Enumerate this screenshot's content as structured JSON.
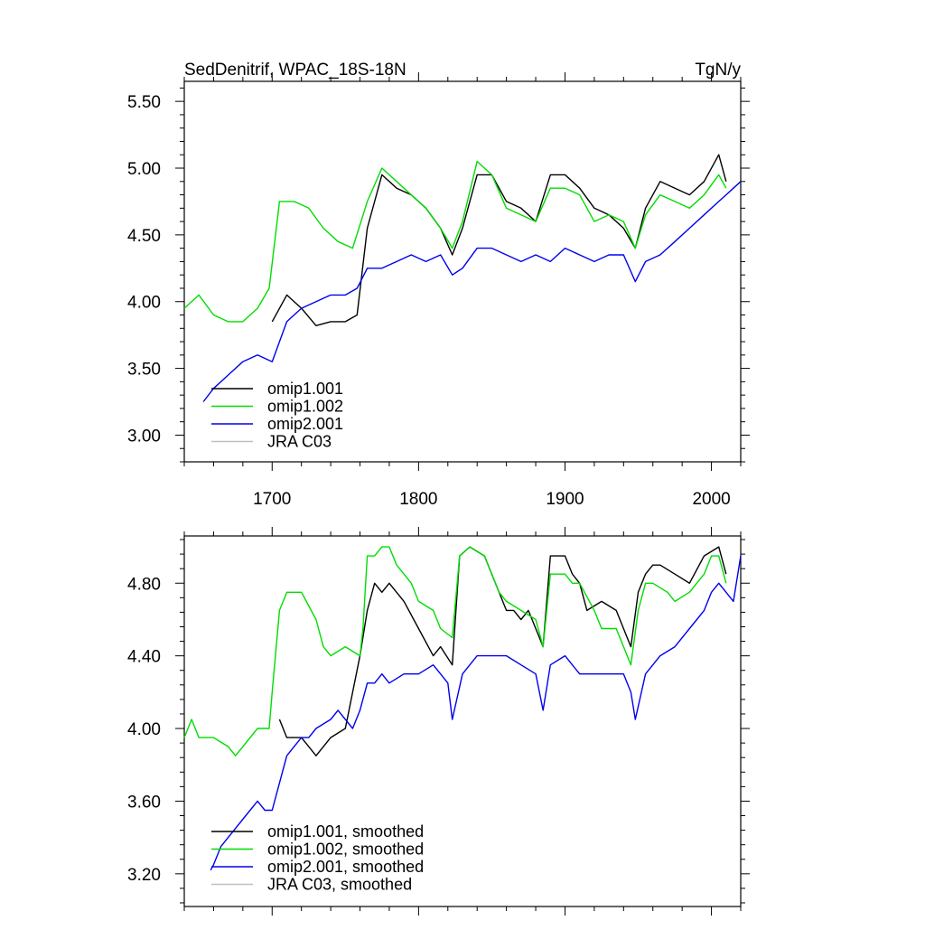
{
  "chart_data": [
    {
      "type": "line",
      "title": "SedDenitrif, WPAC_18S-18N",
      "units": "TgN/y",
      "xlim": [
        1640,
        2020
      ],
      "ylim": [
        2.8,
        5.65
      ],
      "xticks": [
        1700,
        1800,
        1900,
        2000
      ],
      "yticks": [
        "3.00",
        "3.50",
        "4.00",
        "4.50",
        "5.00",
        "5.50"
      ],
      "grid": false,
      "legend_position": "bottom-left",
      "series": [
        {
          "name": "omip1.001",
          "color": "#000000",
          "x": [
            1700,
            1710,
            1720,
            1730,
            1740,
            1750,
            1758,
            1765,
            1775,
            1785,
            1795,
            1805,
            1815,
            1823,
            1830,
            1840,
            1850,
            1860,
            1870,
            1880,
            1890,
            1900,
            1910,
            1920,
            1930,
            1940,
            1948,
            1955,
            1965,
            1975,
            1985,
            1995,
            2005,
            2010
          ],
          "y": [
            3.85,
            4.05,
            3.95,
            3.82,
            3.85,
            3.85,
            3.9,
            4.55,
            4.95,
            4.85,
            4.8,
            4.7,
            4.55,
            4.35,
            4.55,
            4.95,
            4.95,
            4.75,
            4.7,
            4.6,
            4.95,
            4.95,
            4.85,
            4.7,
            4.65,
            4.55,
            4.4,
            4.7,
            4.9,
            4.85,
            4.8,
            4.9,
            5.1,
            4.9
          ]
        },
        {
          "name": "omip1.002",
          "color": "#00dd00",
          "x": [
            1640,
            1650,
            1660,
            1670,
            1680,
            1690,
            1698,
            1705,
            1715,
            1725,
            1735,
            1745,
            1755,
            1765,
            1775,
            1785,
            1795,
            1805,
            1815,
            1823,
            1830,
            1840,
            1850,
            1860,
            1870,
            1880,
            1890,
            1900,
            1910,
            1920,
            1930,
            1940,
            1948,
            1955,
            1965,
            1975,
            1985,
            1995,
            2005,
            2010
          ],
          "y": [
            3.95,
            4.05,
            3.9,
            3.85,
            3.85,
            3.95,
            4.1,
            4.75,
            4.75,
            4.7,
            4.55,
            4.45,
            4.4,
            4.75,
            5.0,
            4.9,
            4.8,
            4.7,
            4.55,
            4.4,
            4.6,
            5.05,
            4.95,
            4.7,
            4.65,
            4.6,
            4.85,
            4.85,
            4.8,
            4.6,
            4.65,
            4.6,
            4.4,
            4.65,
            4.8,
            4.75,
            4.7,
            4.8,
            4.95,
            4.85
          ]
        },
        {
          "name": "omip2.001",
          "color": "#0000ee",
          "x": [
            1653,
            1660,
            1670,
            1680,
            1690,
            1700,
            1710,
            1720,
            1730,
            1740,
            1750,
            1758,
            1765,
            1775,
            1785,
            1795,
            1805,
            1815,
            1823,
            1830,
            1840,
            1850,
            1860,
            1870,
            1880,
            1890,
            1900,
            1910,
            1920,
            1930,
            1940,
            1948,
            1955,
            1965,
            1975,
            1985,
            1995,
            2005,
            2010,
            2015,
            2020
          ],
          "y": [
            3.25,
            3.35,
            3.45,
            3.55,
            3.6,
            3.55,
            3.85,
            3.95,
            4.0,
            4.05,
            4.05,
            4.1,
            4.25,
            4.25,
            4.3,
            4.35,
            4.3,
            4.35,
            4.2,
            4.25,
            4.4,
            4.4,
            4.35,
            4.3,
            4.35,
            4.3,
            4.4,
            4.35,
            4.3,
            4.35,
            4.35,
            4.15,
            4.3,
            4.35,
            4.45,
            4.55,
            4.65,
            4.75,
            4.8,
            4.85,
            4.9
          ]
        },
        {
          "name": "JRA C03",
          "color": "#c0c0c0",
          "x": [],
          "y": []
        }
      ]
    },
    {
      "type": "line",
      "title": "",
      "xlim": [
        1640,
        2020
      ],
      "ylim": [
        3.02,
        5.06
      ],
      "xticks": [
        1700,
        1800,
        1900,
        2000
      ],
      "yticks": [
        "3.20",
        "3.60",
        "4.00",
        "4.40",
        "4.80"
      ],
      "grid": false,
      "legend_position": "bottom-left",
      "series": [
        {
          "name": "omip1.001, smoothed",
          "color": "#000000",
          "x": [
            1705,
            1710,
            1720,
            1730,
            1740,
            1750,
            1760,
            1765,
            1770,
            1775,
            1780,
            1790,
            1800,
            1810,
            1815,
            1823,
            1828,
            1835,
            1845,
            1855,
            1860,
            1865,
            1870,
            1875,
            1880,
            1885,
            1890,
            1900,
            1905,
            1910,
            1915,
            1925,
            1935,
            1945,
            1950,
            1955,
            1960,
            1965,
            1975,
            1985,
            1995,
            2005,
            2010
          ],
          "y": [
            4.05,
            3.95,
            3.95,
            3.85,
            3.95,
            4.0,
            4.4,
            4.65,
            4.8,
            4.75,
            4.8,
            4.7,
            4.55,
            4.4,
            4.45,
            4.35,
            4.95,
            5.0,
            4.95,
            4.75,
            4.65,
            4.65,
            4.6,
            4.65,
            4.55,
            4.45,
            4.95,
            4.95,
            4.85,
            4.8,
            4.65,
            4.7,
            4.65,
            4.45,
            4.75,
            4.85,
            4.9,
            4.9,
            4.85,
            4.8,
            4.95,
            5.0,
            4.85
          ]
        },
        {
          "name": "omip1.002, smoothed",
          "color": "#00dd00",
          "x": [
            1640,
            1645,
            1650,
            1660,
            1670,
            1675,
            1690,
            1698,
            1700,
            1705,
            1710,
            1720,
            1730,
            1735,
            1740,
            1750,
            1760,
            1762,
            1765,
            1770,
            1775,
            1780,
            1785,
            1790,
            1795,
            1800,
            1810,
            1815,
            1823,
            1828,
            1835,
            1845,
            1855,
            1860,
            1870,
            1880,
            1885,
            1890,
            1900,
            1905,
            1910,
            1920,
            1925,
            1935,
            1940,
            1945,
            1950,
            1955,
            1960,
            1970,
            1975,
            1985,
            1995,
            2000,
            2005,
            2010
          ],
          "y": [
            3.95,
            4.05,
            3.95,
            3.95,
            3.9,
            3.85,
            4.0,
            4.0,
            4.2,
            4.65,
            4.75,
            4.75,
            4.6,
            4.45,
            4.4,
            4.45,
            4.4,
            4.55,
            4.95,
            4.95,
            5.0,
            5.0,
            4.9,
            4.85,
            4.8,
            4.7,
            4.65,
            4.55,
            4.5,
            4.95,
            5.0,
            4.95,
            4.75,
            4.7,
            4.65,
            4.6,
            4.45,
            4.85,
            4.85,
            4.8,
            4.8,
            4.65,
            4.55,
            4.55,
            4.45,
            4.35,
            4.65,
            4.8,
            4.8,
            4.75,
            4.7,
            4.75,
            4.85,
            4.95,
            4.95,
            4.8
          ]
        },
        {
          "name": "omip2.001, smoothed",
          "color": "#0000ee",
          "x": [
            1658,
            1660,
            1665,
            1670,
            1675,
            1680,
            1685,
            1690,
            1695,
            1700,
            1705,
            1710,
            1715,
            1720,
            1725,
            1730,
            1740,
            1745,
            1750,
            1755,
            1760,
            1765,
            1770,
            1775,
            1780,
            1790,
            1800,
            1810,
            1815,
            1820,
            1823,
            1830,
            1840,
            1850,
            1860,
            1870,
            1880,
            1885,
            1890,
            1900,
            1905,
            1910,
            1920,
            1930,
            1940,
            1945,
            1948,
            1955,
            1960,
            1965,
            1975,
            1985,
            1990,
            1995,
            2000,
            2005,
            2010,
            2015,
            2020
          ],
          "y": [
            3.22,
            3.25,
            3.35,
            3.4,
            3.45,
            3.5,
            3.55,
            3.6,
            3.55,
            3.55,
            3.7,
            3.85,
            3.9,
            3.95,
            3.95,
            4.0,
            4.05,
            4.1,
            4.05,
            4.0,
            4.1,
            4.25,
            4.25,
            4.3,
            4.25,
            4.3,
            4.3,
            4.35,
            4.3,
            4.25,
            4.05,
            4.3,
            4.4,
            4.4,
            4.4,
            4.35,
            4.3,
            4.1,
            4.35,
            4.4,
            4.35,
            4.3,
            4.3,
            4.3,
            4.3,
            4.2,
            4.05,
            4.3,
            4.35,
            4.4,
            4.45,
            4.55,
            4.6,
            4.65,
            4.75,
            4.8,
            4.75,
            4.7,
            4.95
          ]
        },
        {
          "name": "JRA C03, smoothed",
          "color": "#c0c0c0",
          "x": [],
          "y": []
        }
      ]
    }
  ]
}
